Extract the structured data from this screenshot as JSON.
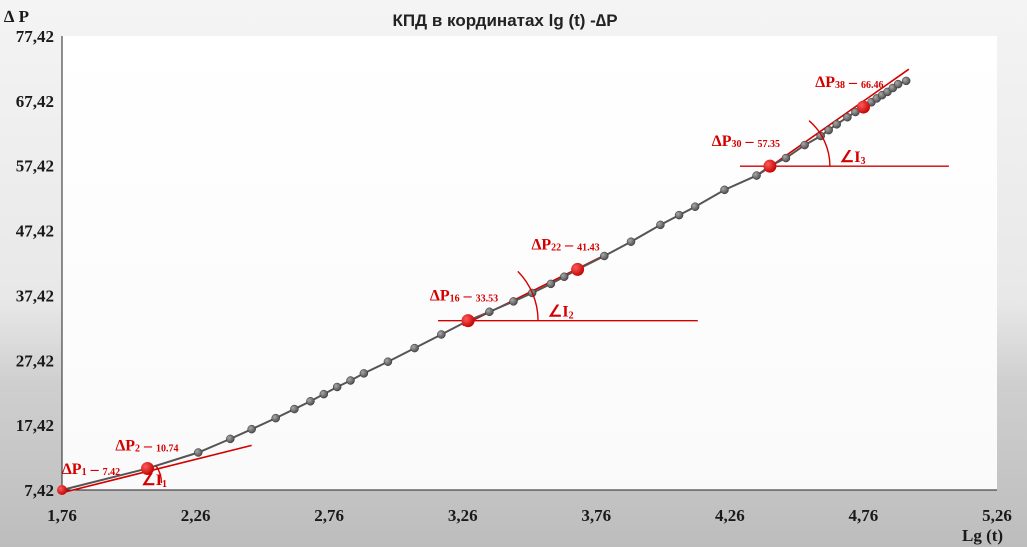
{
  "chart_data": {
    "type": "scatter",
    "title": "КПД в кординатах lg (t) -∆P",
    "xlabel": "Lg (t)",
    "ylabel": "∆ P",
    "xlim": [
      1.76,
      5.26
    ],
    "ylim": [
      7.42,
      77.42
    ],
    "xticks": [
      "1,76",
      "2,26",
      "2,76",
      "3,26",
      "3,76",
      "4,26",
      "4,76",
      "5,26"
    ],
    "yticks": [
      "7,42",
      "17,42",
      "27,42",
      "37,42",
      "47,42",
      "57,42",
      "67,42",
      "77,42"
    ],
    "series": [
      {
        "points": [
          [
            1.76,
            7.42
          ],
          [
            2.08,
            10.74
          ],
          [
            2.27,
            13.2
          ],
          [
            2.39,
            15.3
          ],
          [
            2.47,
            16.8
          ],
          [
            2.56,
            18.5
          ],
          [
            2.63,
            19.9
          ],
          [
            2.69,
            21.1
          ],
          [
            2.74,
            22.2
          ],
          [
            2.79,
            23.3
          ],
          [
            2.84,
            24.3
          ],
          [
            2.89,
            25.4
          ],
          [
            2.98,
            27.2
          ],
          [
            3.08,
            29.3
          ],
          [
            3.18,
            31.4
          ],
          [
            3.28,
            33.53
          ],
          [
            3.36,
            34.9
          ],
          [
            3.45,
            36.5
          ],
          [
            3.52,
            37.8
          ],
          [
            3.59,
            39.2
          ],
          [
            3.64,
            40.3
          ],
          [
            3.69,
            41.43
          ],
          [
            3.79,
            43.5
          ],
          [
            3.89,
            45.7
          ],
          [
            4.0,
            48.3
          ],
          [
            4.07,
            49.8
          ],
          [
            4.13,
            51.1
          ],
          [
            4.24,
            53.7
          ],
          [
            4.36,
            55.9
          ],
          [
            4.41,
            57.35
          ],
          [
            4.47,
            58.6
          ],
          [
            4.54,
            60.6
          ],
          [
            4.6,
            62.0
          ],
          [
            4.63,
            62.9
          ],
          [
            4.66,
            63.8
          ],
          [
            4.7,
            64.9
          ],
          [
            4.73,
            65.7
          ],
          [
            4.76,
            66.46
          ],
          [
            4.79,
            67.2
          ],
          [
            4.81,
            67.8
          ],
          [
            4.83,
            68.3
          ],
          [
            4.85,
            68.8
          ],
          [
            4.87,
            69.4
          ],
          [
            4.89,
            70.0
          ],
          [
            4.92,
            70.5
          ]
        ]
      }
    ],
    "highlighted": [
      {
        "label": "∆P",
        "sub": "1",
        "value_text": "7.42",
        "x": 1.76,
        "y": 7.42
      },
      {
        "label": "∆P",
        "sub": "2",
        "value_text": "10.74",
        "x": 2.08,
        "y": 10.74
      },
      {
        "label": "∆P",
        "sub": "16",
        "value_text": "33.53",
        "x": 3.28,
        "y": 33.53
      },
      {
        "label": "∆P",
        "sub": "22",
        "value_text": "41.43",
        "x": 3.69,
        "y": 41.43
      },
      {
        "label": "∆P",
        "sub": "30",
        "value_text": "57.35",
        "x": 4.41,
        "y": 57.35
      },
      {
        "label": "∆P",
        "sub": "38",
        "value_text": "66.46",
        "x": 4.76,
        "y": 66.46
      }
    ],
    "fit_lines": [
      {
        "x1": 1.76,
        "y1": 7.0,
        "x2": 2.47,
        "y2": 14.3
      },
      {
        "x1": 3.26,
        "y1": 32.8,
        "x2": 3.79,
        "y2": 43.6
      },
      {
        "x1": 4.36,
        "y1": 55.8,
        "x2": 4.93,
        "y2": 72.3
      }
    ],
    "angles": [
      {
        "label": "∠I",
        "sub": "1",
        "x": 2.02,
        "y": 8.5,
        "hx2": 2.24
      },
      {
        "label": "∠I",
        "sub": "2",
        "x": 3.28,
        "y": 33.53,
        "hx2": 4.14
      },
      {
        "label": "∠I",
        "sub": "3",
        "x": 4.41,
        "y": 57.35,
        "hx2": 5.08
      }
    ],
    "colors": {
      "line": "#555555",
      "marker": "#6b6b6b",
      "highlight": "#e00000",
      "fit": "#d40000"
    },
    "grid": false
  }
}
